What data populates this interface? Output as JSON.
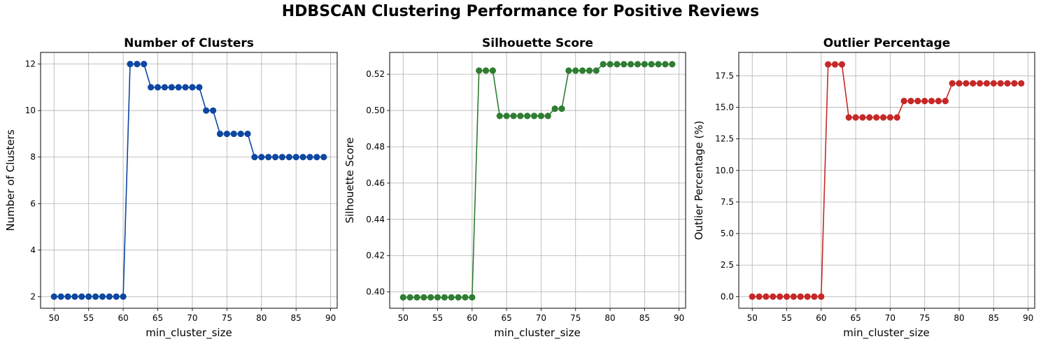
{
  "suptitle": "HDBSCAN Clustering Performance for Positive Reviews",
  "chart_data": [
    {
      "type": "line",
      "title": "Number of Clusters",
      "xlabel": "min_cluster_size",
      "ylabel": "Number of Clusters",
      "color": "#0d47a1",
      "grid": true,
      "xlim": [
        48.05,
        90.95
      ],
      "ylim": [
        1.5,
        12.5
      ],
      "xticks": [
        50,
        55,
        60,
        65,
        70,
        75,
        80,
        85,
        90
      ],
      "yticks": [
        2,
        4,
        6,
        8,
        10,
        12
      ],
      "ytick_labels": [
        "2",
        "4",
        "6",
        "8",
        "10",
        "12"
      ],
      "x": [
        50,
        51,
        52,
        53,
        54,
        55,
        56,
        57,
        58,
        59,
        60,
        61,
        62,
        63,
        64,
        65,
        66,
        67,
        68,
        69,
        70,
        71,
        72,
        73,
        74,
        75,
        76,
        77,
        78,
        79,
        80,
        81,
        82,
        83,
        84,
        85,
        86,
        87,
        88,
        89
      ],
      "values": [
        2,
        2,
        2,
        2,
        2,
        2,
        2,
        2,
        2,
        2,
        2,
        12,
        12,
        12,
        11,
        11,
        11,
        11,
        11,
        11,
        11,
        11,
        10,
        10,
        9,
        9,
        9,
        9,
        9,
        8,
        8,
        8,
        8,
        8,
        8,
        8,
        8,
        8,
        8,
        8
      ]
    },
    {
      "type": "line",
      "title": "Silhouette Score",
      "xlabel": "min_cluster_size",
      "ylabel": "Silhouette Score",
      "color": "#2e7d32",
      "grid": true,
      "xlim": [
        48.05,
        90.95
      ],
      "ylim": [
        0.391,
        0.532
      ],
      "xticks": [
        50,
        55,
        60,
        65,
        70,
        75,
        80,
        85,
        90
      ],
      "yticks": [
        0.4,
        0.42,
        0.44,
        0.46,
        0.48,
        0.5,
        0.52
      ],
      "ytick_labels": [
        "0.40",
        "0.42",
        "0.44",
        "0.46",
        "0.48",
        "0.50",
        "0.52"
      ],
      "x": [
        50,
        51,
        52,
        53,
        54,
        55,
        56,
        57,
        58,
        59,
        60,
        61,
        62,
        63,
        64,
        65,
        66,
        67,
        68,
        69,
        70,
        71,
        72,
        73,
        74,
        75,
        76,
        77,
        78,
        79,
        80,
        81,
        82,
        83,
        84,
        85,
        86,
        87,
        88,
        89
      ],
      "values": [
        0.397,
        0.397,
        0.397,
        0.397,
        0.397,
        0.397,
        0.397,
        0.397,
        0.397,
        0.397,
        0.397,
        0.522,
        0.522,
        0.522,
        0.497,
        0.497,
        0.497,
        0.497,
        0.497,
        0.497,
        0.497,
        0.497,
        0.501,
        0.501,
        0.522,
        0.522,
        0.522,
        0.522,
        0.522,
        0.5255,
        0.5255,
        0.5255,
        0.5255,
        0.5255,
        0.5255,
        0.5255,
        0.5255,
        0.5255,
        0.5255,
        0.5255
      ]
    },
    {
      "type": "line",
      "title": "Outlier Percentage",
      "xlabel": "min_cluster_size",
      "ylabel": "Outlier Percentage (%)",
      "color": "#c62828",
      "grid": true,
      "xlim": [
        48.05,
        90.95
      ],
      "ylim": [
        -0.92,
        19.35
      ],
      "xticks": [
        50,
        55,
        60,
        65,
        70,
        75,
        80,
        85,
        90
      ],
      "yticks": [
        0.0,
        2.5,
        5.0,
        7.5,
        10.0,
        12.5,
        15.0,
        17.5
      ],
      "ytick_labels": [
        "0.0",
        "2.5",
        "5.0",
        "7.5",
        "10.0",
        "12.5",
        "15.0",
        "17.5"
      ],
      "x": [
        50,
        51,
        52,
        53,
        54,
        55,
        56,
        57,
        58,
        59,
        60,
        61,
        62,
        63,
        64,
        65,
        66,
        67,
        68,
        69,
        70,
        71,
        72,
        73,
        74,
        75,
        76,
        77,
        78,
        79,
        80,
        81,
        82,
        83,
        84,
        85,
        86,
        87,
        88,
        89
      ],
      "values": [
        0,
        0,
        0,
        0,
        0,
        0,
        0,
        0,
        0,
        0,
        0,
        18.4,
        18.4,
        18.4,
        14.2,
        14.2,
        14.2,
        14.2,
        14.2,
        14.2,
        14.2,
        14.2,
        15.5,
        15.5,
        15.5,
        15.5,
        15.5,
        15.5,
        15.5,
        16.9,
        16.9,
        16.9,
        16.9,
        16.9,
        16.9,
        16.9,
        16.9,
        16.9,
        16.9,
        16.9
      ]
    }
  ]
}
